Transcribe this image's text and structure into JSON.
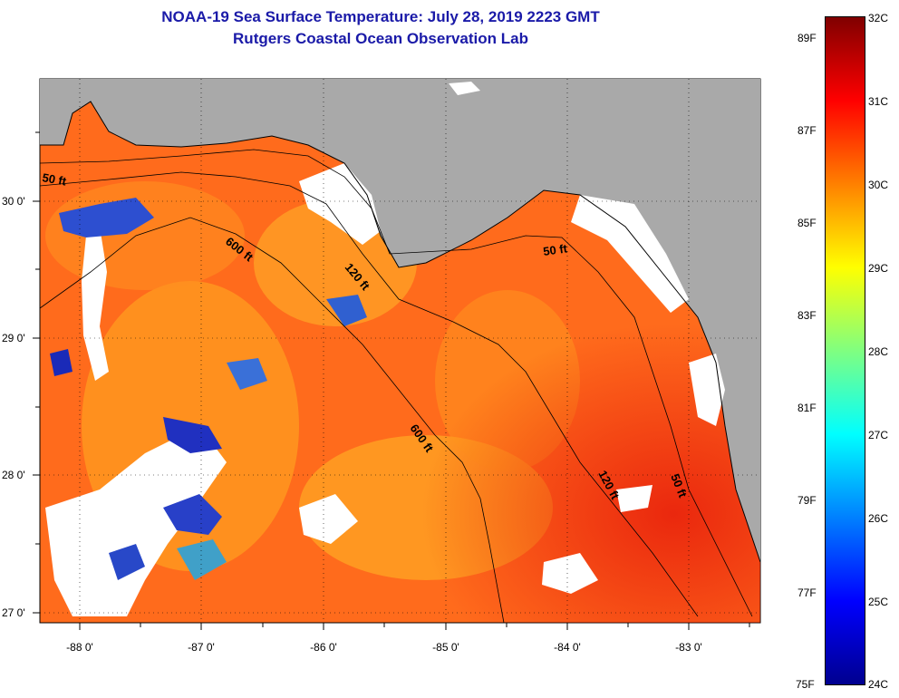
{
  "title": {
    "line1": "NOAA-19 Sea Surface Temperature:  July 28, 2019 2223 GMT",
    "line2": "Rutgers Coastal Ocean Observation Lab"
  },
  "map": {
    "lon_ticks": [
      "-88 0'",
      "-87 0'",
      "-86 0'",
      "-85 0'",
      "-84 0'",
      "-83 0'"
    ],
    "lat_ticks": [
      "30 0'",
      "29 0'",
      "28 0'",
      "27 0'"
    ],
    "contour_labels": [
      "50 ft",
      "600 ft",
      "120 ft",
      "50 ft",
      "600 ft",
      "120 ft",
      "50 ft"
    ],
    "colors": {
      "land": "#a9a9a9",
      "cloud": "#ffffff",
      "warm_water": "#ff6a1a",
      "hot_water": "#ee2a10",
      "cool_patch": "#2030c0",
      "coast": "#000000"
    }
  },
  "colorbar": {
    "celsius": [
      "32C",
      "31C",
      "30C",
      "29C",
      "28C",
      "27C",
      "26C",
      "25C",
      "24C"
    ],
    "fahrenheit": [
      "89F",
      "87F",
      "85F",
      "83F",
      "81F",
      "79F",
      "77F",
      "75F"
    ],
    "colors": [
      "#00008f",
      "#0000ff",
      "#0080ff",
      "#00ffff",
      "#80ff80",
      "#ffff00",
      "#ff8000",
      "#ff0000",
      "#800000"
    ]
  }
}
